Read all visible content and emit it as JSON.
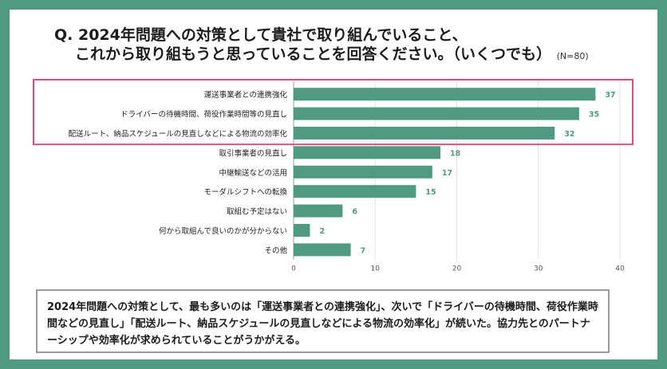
{
  "title": {
    "line1": "Q. 2024年問題への対策として貴社で取り組んでいること、",
    "line2": "これから取り組もうと思っていることを回答ください。（いくつでも）",
    "note": "(N=80)"
  },
  "chart_data": {
    "type": "bar",
    "orientation": "horizontal",
    "categories": [
      "運送事業者との連携強化",
      "ドライバーの待機時間、荷役作業時間等の見直し",
      "配送ルート、納品スケジュールの見直しなどによる物流の効率化",
      "取引事業者の見直し",
      "中継輸送などの活用",
      "モーダルシフトへの転換",
      "取組む予定はない",
      "何から取組んで良いのかが分からない",
      "その他"
    ],
    "values": [
      37,
      35,
      32,
      18,
      17,
      15,
      6,
      2,
      7
    ],
    "xlim": [
      0,
      40
    ],
    "xticks": [
      0,
      10,
      20,
      30,
      40
    ],
    "grid": true,
    "bar_color": "#4f9a80",
    "label_color": "#4f9a80",
    "highlight_color": "#d4507a",
    "highlight_count": 3
  },
  "summary": "2024年問題への対策として、最も多いのは「運送事業者との連携強化」、次いで「ドライバーの待機時間、荷役作業時間などの見直し」「配送ルート、納品スケジュールの見直しなどによる物流の効率化」が続いた。協力先とのパートナーシップや効率化が求められていることがうかがえる。"
}
